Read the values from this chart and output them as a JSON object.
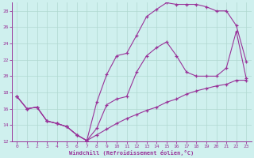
{
  "xlabel": "Windchill (Refroidissement éolien,°C)",
  "bg_color": "#cff0ee",
  "line_color": "#993399",
  "grid_color": "#b0d8d0",
  "xlim": [
    -0.5,
    23.5
  ],
  "ylim": [
    12,
    29
  ],
  "yticks": [
    12,
    14,
    16,
    18,
    20,
    22,
    24,
    26,
    28
  ],
  "xticks": [
    0,
    1,
    2,
    3,
    4,
    5,
    6,
    7,
    8,
    9,
    10,
    11,
    12,
    13,
    14,
    15,
    16,
    17,
    18,
    19,
    20,
    21,
    22,
    23
  ],
  "line1_x": [
    0,
    1,
    2,
    3,
    4,
    5,
    6,
    7,
    8,
    9,
    10,
    11,
    12,
    13,
    14,
    15,
    16,
    17,
    18,
    19,
    20,
    21,
    22,
    23
  ],
  "line1_y": [
    17.5,
    16.0,
    16.2,
    14.5,
    14.2,
    13.8,
    12.8,
    12.1,
    13.6,
    16.5,
    17.2,
    17.5,
    20.5,
    22.5,
    23.5,
    24.2,
    22.5,
    20.5,
    20.0,
    20.0,
    20.0,
    21.0,
    25.5,
    19.7
  ],
  "line2_x": [
    0,
    1,
    2,
    3,
    4,
    5,
    6,
    7,
    8,
    9,
    10,
    11,
    12,
    13,
    14,
    15,
    16,
    17,
    18,
    19,
    20,
    21,
    22,
    23
  ],
  "line2_y": [
    17.5,
    16.0,
    16.2,
    14.5,
    14.2,
    13.8,
    12.8,
    12.1,
    16.8,
    20.2,
    22.5,
    22.8,
    25.0,
    27.3,
    28.2,
    29.0,
    28.8,
    28.8,
    28.8,
    28.5,
    28.0,
    28.0,
    26.2,
    21.8
  ],
  "line3_x": [
    0,
    1,
    2,
    3,
    4,
    5,
    6,
    7,
    8,
    9,
    10,
    11,
    12,
    13,
    14,
    15,
    16,
    17,
    18,
    19,
    20,
    21,
    22,
    23
  ],
  "line3_y": [
    17.5,
    16.0,
    16.2,
    14.5,
    14.2,
    13.8,
    12.8,
    12.1,
    12.8,
    13.5,
    14.2,
    14.8,
    15.3,
    15.8,
    16.2,
    16.8,
    17.2,
    17.8,
    18.2,
    18.5,
    18.8,
    19.0,
    19.5,
    19.5
  ]
}
